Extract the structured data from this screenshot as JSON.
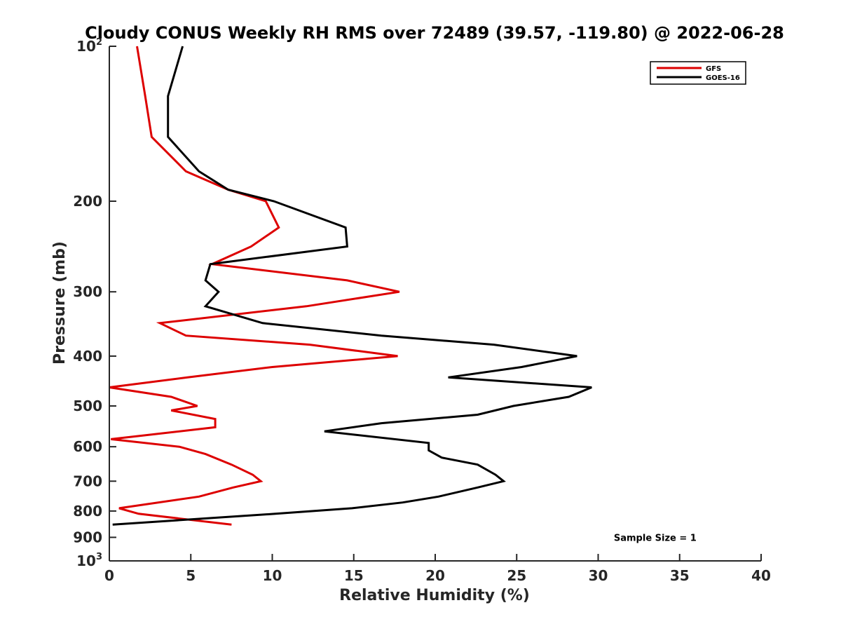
{
  "chart_data": {
    "type": "line",
    "title": "Cloudy CONUS Weekly RH RMS over 72489 (39.57, -119.80) @ 2022-06-28",
    "xlabel": "Relative Humidity (%)",
    "ylabel": "Pressure (mb)",
    "xlim": [
      0,
      40
    ],
    "ylim": [
      100,
      1000
    ],
    "yscale": "log",
    "y_reversed": true,
    "grid": false,
    "legend_position": "top-right",
    "x_ticks": [
      0,
      5,
      10,
      15,
      20,
      25,
      30,
      35,
      40
    ],
    "y_ticks": [
      {
        "value": 100,
        "base": "10",
        "exp": "2"
      },
      {
        "value": 200,
        "label": "200"
      },
      {
        "value": 300,
        "label": "300"
      },
      {
        "value": 400,
        "label": "400"
      },
      {
        "value": 500,
        "label": "500"
      },
      {
        "value": 600,
        "label": "600"
      },
      {
        "value": 700,
        "label": "700"
      },
      {
        "value": 800,
        "label": "800"
      },
      {
        "value": 900,
        "label": "900"
      },
      {
        "value": 1000,
        "base": "10",
        "exp": "3"
      }
    ],
    "series": [
      {
        "name": "GFS",
        "color": "#dd0000",
        "points": [
          [
            1.7,
            100
          ],
          [
            2.2,
            125
          ],
          [
            2.6,
            150
          ],
          [
            4.7,
            175
          ],
          [
            7.3,
            190
          ],
          [
            9.6,
            200
          ],
          [
            10.4,
            225
          ],
          [
            8.7,
            245
          ],
          [
            6.3,
            265
          ],
          [
            14.6,
            285
          ],
          [
            17.8,
            300
          ],
          [
            12.1,
            320
          ],
          [
            3.1,
            345
          ],
          [
            4.7,
            365
          ],
          [
            12.3,
            380
          ],
          [
            17.7,
            400
          ],
          [
            10.0,
            420
          ],
          [
            4.8,
            440
          ],
          [
            0.0,
            460
          ],
          [
            3.8,
            480
          ],
          [
            5.4,
            500
          ],
          [
            3.8,
            510
          ],
          [
            6.5,
            530
          ],
          [
            6.5,
            550
          ],
          [
            0.1,
            580
          ],
          [
            4.3,
            600
          ],
          [
            5.9,
            620
          ],
          [
            7.5,
            650
          ],
          [
            8.8,
            680
          ],
          [
            9.3,
            700
          ],
          [
            7.6,
            720
          ],
          [
            5.5,
            750
          ],
          [
            0.6,
            790
          ],
          [
            1.8,
            810
          ],
          [
            7.5,
            850
          ]
        ]
      },
      {
        "name": "GOES-16",
        "color": "#000000",
        "points": [
          [
            4.5,
            100
          ],
          [
            3.6,
            125
          ],
          [
            3.6,
            150
          ],
          [
            5.5,
            175
          ],
          [
            7.3,
            190
          ],
          [
            10.1,
            200
          ],
          [
            14.5,
            225
          ],
          [
            14.6,
            245
          ],
          [
            6.2,
            265
          ],
          [
            5.9,
            285
          ],
          [
            6.7,
            300
          ],
          [
            5.9,
            320
          ],
          [
            9.4,
            345
          ],
          [
            16.7,
            365
          ],
          [
            23.6,
            380
          ],
          [
            28.7,
            400
          ],
          [
            25.3,
            420
          ],
          [
            20.8,
            440
          ],
          [
            29.6,
            460
          ],
          [
            28.2,
            480
          ],
          [
            24.8,
            500
          ],
          [
            22.6,
            520
          ],
          [
            16.7,
            540
          ],
          [
            13.2,
            560
          ],
          [
            19.6,
            590
          ],
          [
            19.6,
            610
          ],
          [
            20.4,
            630
          ],
          [
            22.6,
            650
          ],
          [
            23.7,
            680
          ],
          [
            24.2,
            700
          ],
          [
            22.6,
            720
          ],
          [
            20.2,
            750
          ],
          [
            18.0,
            770
          ],
          [
            14.9,
            790
          ],
          [
            10.2,
            810
          ],
          [
            0.2,
            850
          ]
        ]
      }
    ],
    "annotations": [
      {
        "text": "Sample Size = 1",
        "x": 33.5,
        "y": 900
      }
    ]
  }
}
